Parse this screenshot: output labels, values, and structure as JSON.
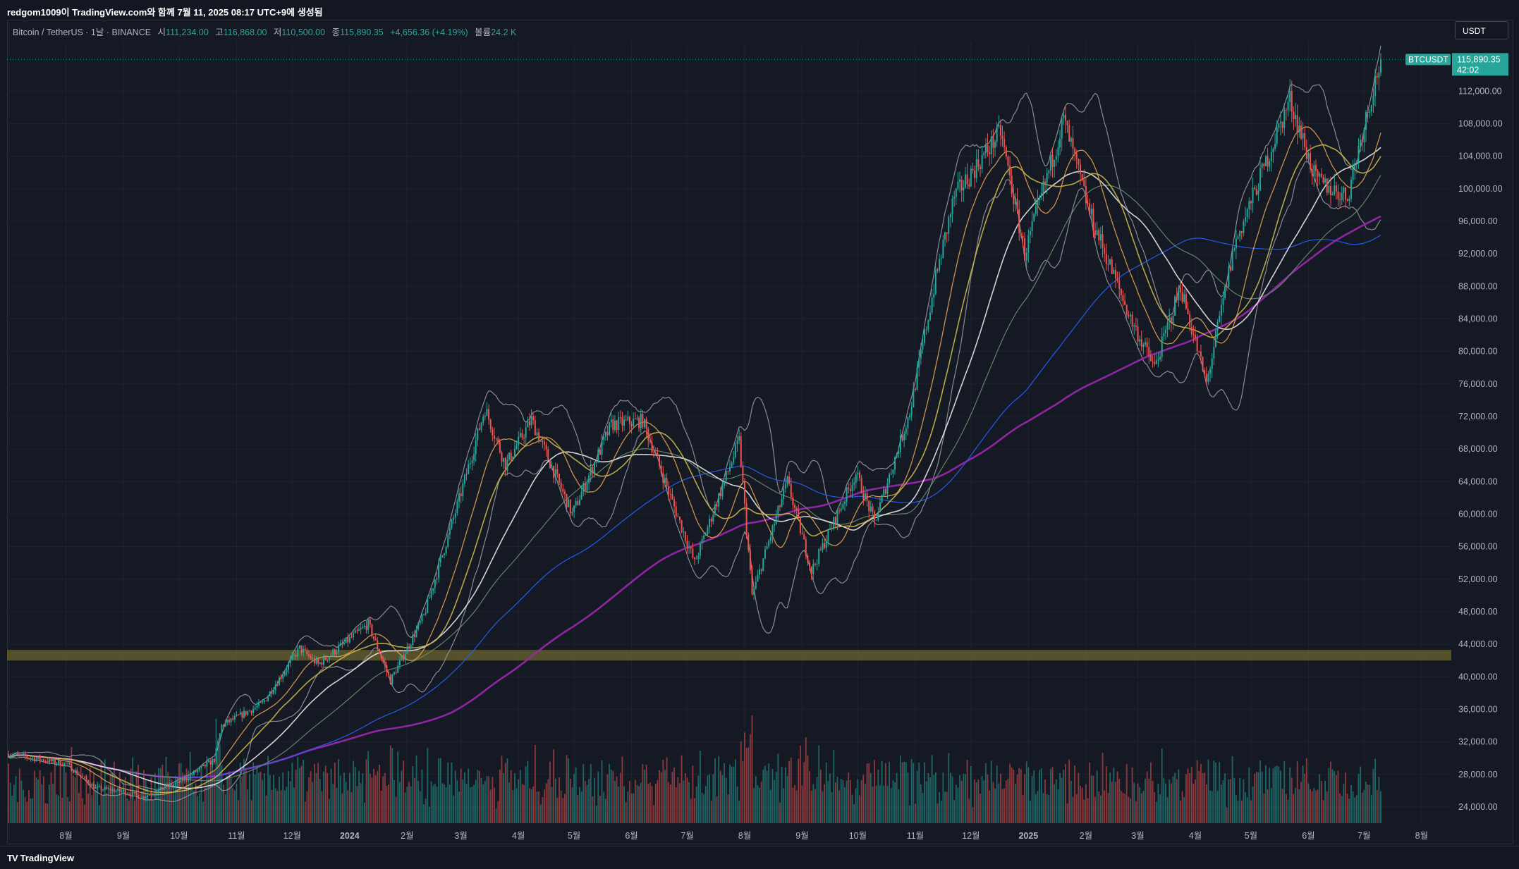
{
  "header": {
    "credit": "redgom1009이 TradingView.com와 함께 7월 11, 2025 08:17 UTC+9에 생성됨"
  },
  "legend": {
    "symbol": "Bitcoin / TetherUS · 1날 · BINANCE",
    "open_label": "시",
    "open": "111,234.00",
    "high_label": "고",
    "high": "116,868.00",
    "low_label": "저",
    "low": "110,500.00",
    "close_label": "종",
    "close": "115,890.35",
    "change": "+4,656.36 (+4.19%)",
    "volume_label": "볼륨",
    "volume": "24.2 K"
  },
  "currency_button": "USDT",
  "price_tag": {
    "symbol": "BTCUSDT",
    "price": "115,890.35",
    "countdown": "42:02"
  },
  "footer": {
    "brand": "TradingView"
  },
  "colors": {
    "up": "#26a69a",
    "down": "#ef5350",
    "ma_fast": "#e0a050",
    "ma_mid": "#c8b84a",
    "ma_white": "#e8e8e8",
    "ma_green": "#6b8f6b",
    "ma_blue": "#2962ff",
    "ma_purple": "#9c27b0",
    "band": "#9598a1",
    "zone": "#6b6430"
  },
  "chart_data": {
    "type": "candlestick",
    "y_axis": {
      "ticks": [
        "112,000.00",
        "108,000.00",
        "104,000.00",
        "100,000.00",
        "96,000.00",
        "92,000.00",
        "88,000.00",
        "84,000.00",
        "80,000.00",
        "76,000.00",
        "72,000.00",
        "68,000.00",
        "64,000.00",
        "60,000.00",
        "56,000.00",
        "52,000.00",
        "48,000.00",
        "44,000.00",
        "40,000.00",
        "36,000.00",
        "32,000.00",
        "28,000.00",
        "24,000.00"
      ],
      "ylim": [
        22000,
        118000
      ]
    },
    "x_axis": {
      "ticks": [
        "8월",
        "9월",
        "10월",
        "11월",
        "12월",
        "2024",
        "2월",
        "3월",
        "4월",
        "5월",
        "6월",
        "7월",
        "8월",
        "9월",
        "10월",
        "11월",
        "12월",
        "2025",
        "2월",
        "3월",
        "4월",
        "5월",
        "6월",
        "7월",
        "8월"
      ],
      "bold": [
        "2024",
        "2025"
      ]
    },
    "range": {
      "start": "2023-07-01",
      "end": "2025-07-10"
    },
    "current_price": 115890.35,
    "support_zone": [
      42000,
      43300
    ],
    "price_path": [
      [
        "2023-07-01",
        30500
      ],
      [
        "2023-08-01",
        29300
      ],
      [
        "2023-08-17",
        26300
      ],
      [
        "2023-09-01",
        25900
      ],
      [
        "2023-09-11",
        25200
      ],
      [
        "2023-10-01",
        27000
      ],
      [
        "2023-10-20",
        29800
      ],
      [
        "2023-10-24",
        34000
      ],
      [
        "2023-11-15",
        36700
      ],
      [
        "2023-12-05",
        43500
      ],
      [
        "2023-12-15",
        41500
      ],
      [
        "2024-01-11",
        46500
      ],
      [
        "2024-01-23",
        39500
      ],
      [
        "2024-02-10",
        47500
      ],
      [
        "2024-02-28",
        61000
      ],
      [
        "2024-03-14",
        73000
      ],
      [
        "2024-03-25",
        66000
      ],
      [
        "2024-04-08",
        71600
      ],
      [
        "2024-04-30",
        60000
      ],
      [
        "2024-05-21",
        71000
      ],
      [
        "2024-06-07",
        71500
      ],
      [
        "2024-07-05",
        54000
      ],
      [
        "2024-07-29",
        69000
      ],
      [
        "2024-08-05",
        50000
      ],
      [
        "2024-08-24",
        64000
      ],
      [
        "2024-09-06",
        53000
      ],
      [
        "2024-09-30",
        65000
      ],
      [
        "2024-10-10",
        59000
      ],
      [
        "2024-10-29",
        72500
      ],
      [
        "2024-11-12",
        89000
      ],
      [
        "2024-11-22",
        99000
      ],
      [
        "2024-12-17",
        107000
      ],
      [
        "2024-12-30",
        92000
      ],
      [
        "2025-01-20",
        108500
      ],
      [
        "2025-02-03",
        97000
      ],
      [
        "2025-02-25",
        84000
      ],
      [
        "2025-03-10",
        78000
      ],
      [
        "2025-03-24",
        88000
      ],
      [
        "2025-04-07",
        76000
      ],
      [
        "2025-04-22",
        93000
      ],
      [
        "2025-05-22",
        111000
      ],
      [
        "2025-06-05",
        101000
      ],
      [
        "2025-06-22",
        99000
      ],
      [
        "2025-06-30",
        107000
      ],
      [
        "2025-07-10",
        115890
      ]
    ]
  }
}
